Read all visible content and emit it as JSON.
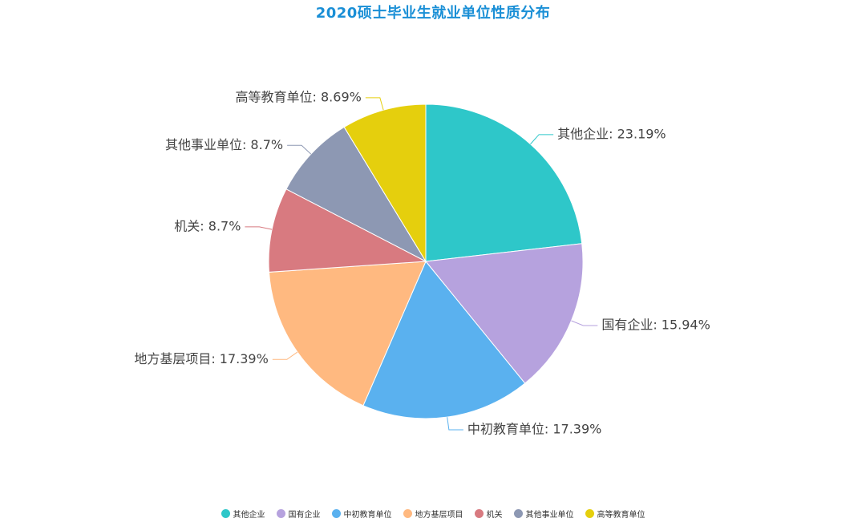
{
  "chart_data": {
    "type": "pie",
    "title": "2020硕士毕业生就业单位性质分布",
    "slices": [
      {
        "name": "其他企业",
        "value": 23.19,
        "label": "其他企业: 23.19%",
        "color": "#2ec7c9"
      },
      {
        "name": "国有企业",
        "value": 15.94,
        "label": "国有企业: 15.94%",
        "color": "#b6a2de"
      },
      {
        "name": "中初教育单位",
        "value": 17.39,
        "label": "中初教育单位: 17.39%",
        "color": "#5ab1ef"
      },
      {
        "name": "地方基层项目",
        "value": 17.39,
        "label": "地方基层项目: 17.39%",
        "color": "#ffb980"
      },
      {
        "name": "机关",
        "value": 8.7,
        "label": "机关: 8.7%",
        "color": "#d87a80"
      },
      {
        "name": "其他事业单位",
        "value": 8.7,
        "label": "其他事业单位: 8.7%",
        "color": "#8d98b3"
      },
      {
        "name": "高等教育单位",
        "value": 8.69,
        "label": "高等教育单位: 8.69%",
        "color": "#e5cf0d"
      }
    ],
    "legend_position": "bottom"
  }
}
